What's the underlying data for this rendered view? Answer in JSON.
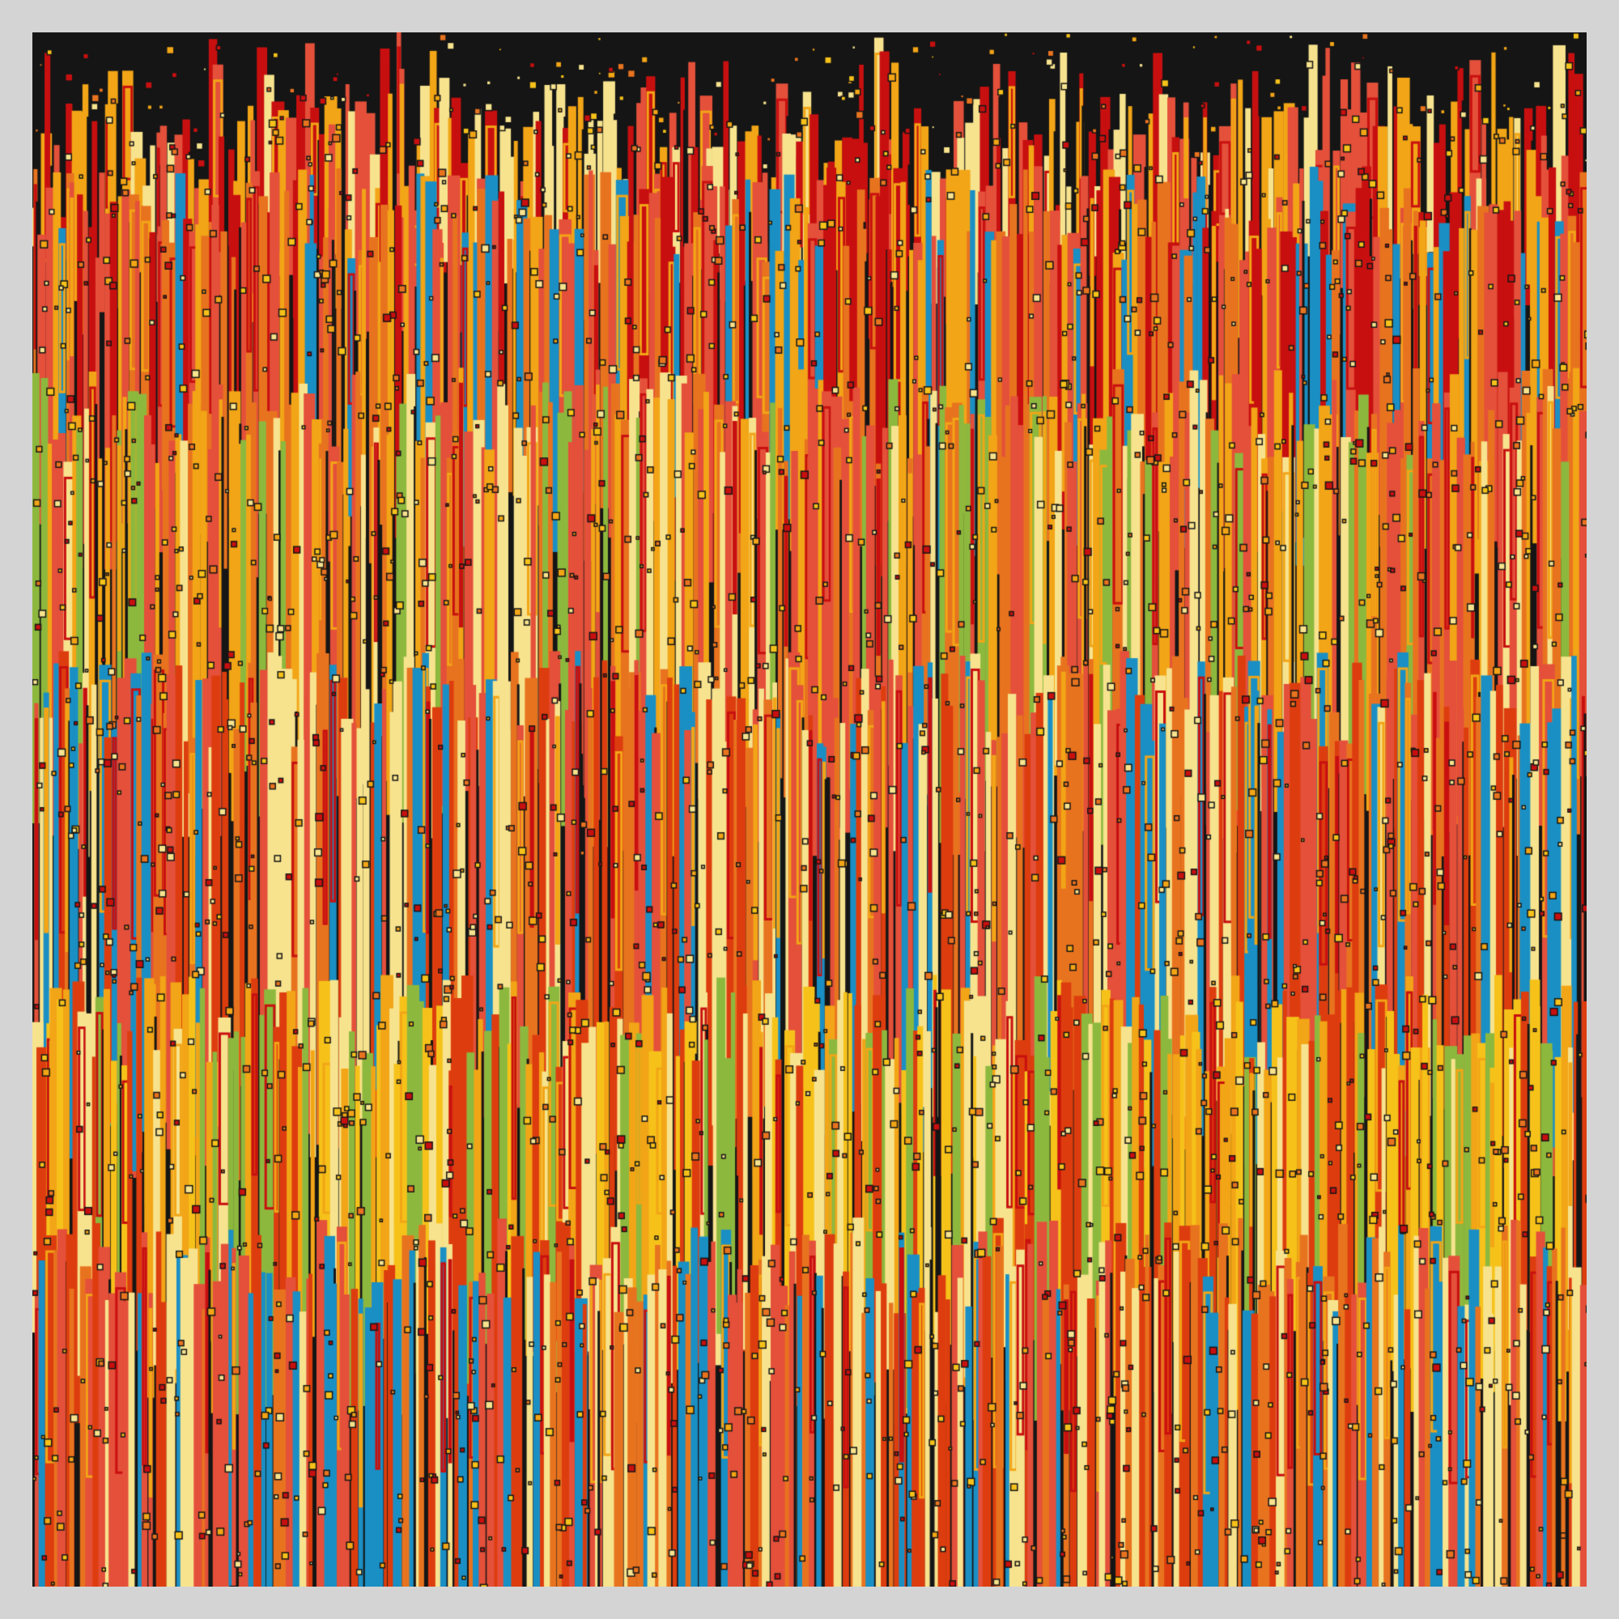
{
  "artwork": {
    "background_color": "#151515",
    "frame_color": "#d4d4d4",
    "palette": {
      "cream": "#f7e38e",
      "amber": "#f2a516",
      "orange": "#e8731f",
      "red_orange": "#dd3d0e",
      "crimson": "#c80f0f",
      "coral": "#e4503a",
      "blue": "#1a8fc4",
      "green": "#8db83e",
      "gold": "#f6c21a"
    }
  }
}
